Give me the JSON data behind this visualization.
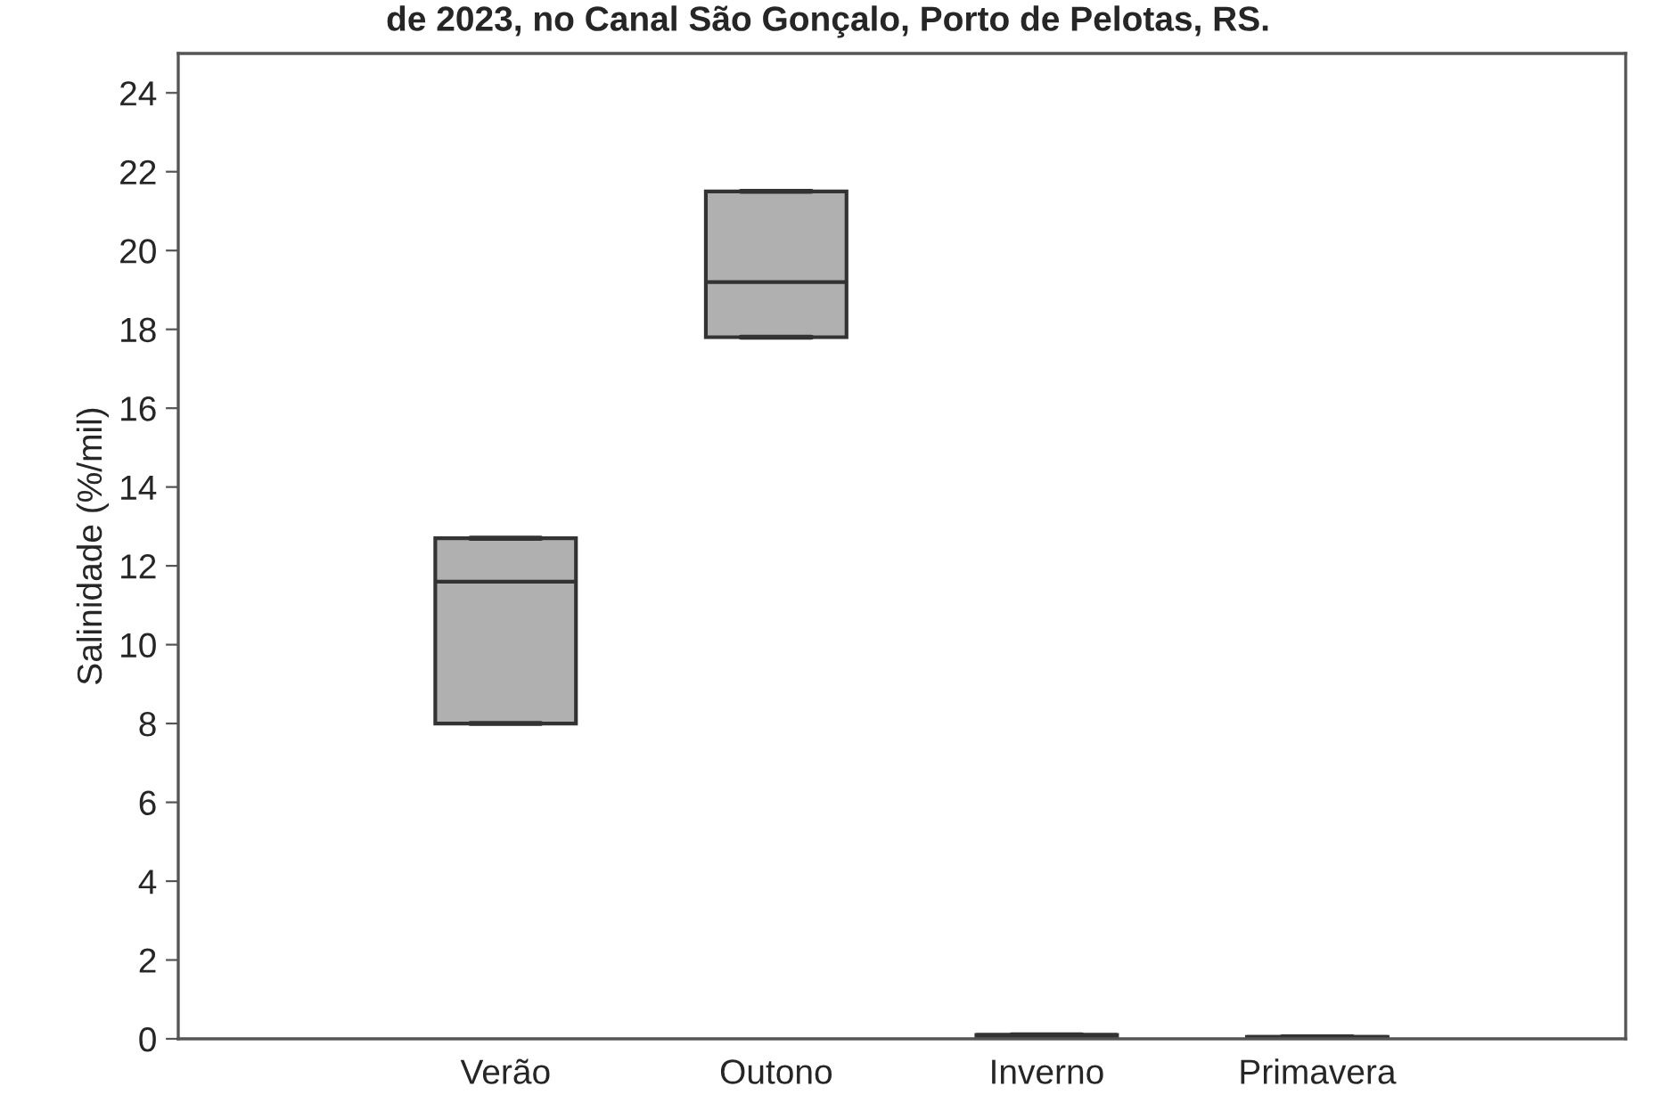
{
  "chart_data": {
    "type": "box",
    "title": "de 2023, no Canal São Gonçalo, Porto de Pelotas, RS.",
    "ylabel": "Salinidade (%/mil)",
    "categories": [
      "Verão",
      "Outono",
      "Inverno",
      "Primavera"
    ],
    "boxes": [
      {
        "low": 8.0,
        "q1": 8.0,
        "median": 11.6,
        "q3": 12.7,
        "high": 12.7
      },
      {
        "low": 17.8,
        "q1": 17.8,
        "median": 19.2,
        "q3": 21.5,
        "high": 21.5
      },
      {
        "low": 0.05,
        "q1": 0.05,
        "median": 0.1,
        "q3": 0.1,
        "high": 0.1
      },
      {
        "low": 0.02,
        "q1": 0.02,
        "median": 0.05,
        "q3": 0.05,
        "high": 0.05
      }
    ],
    "color": "#b0b0b0",
    "ylim": [
      0,
      25
    ],
    "yticks": [
      0,
      2,
      4,
      6,
      8,
      10,
      12,
      14,
      16,
      18,
      20,
      22,
      24
    ],
    "grid": false
  }
}
